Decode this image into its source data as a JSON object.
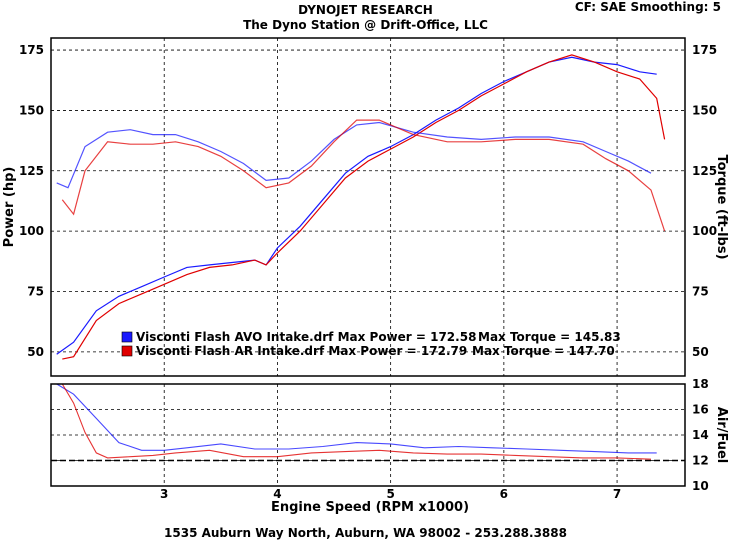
{
  "header": {
    "title": "DYNOJET RESEARCH",
    "subtitle": "The Dyno Station @ Drift-Office, LLC",
    "settings": "CF: SAE  Smoothing: 5"
  },
  "footer": {
    "address": "1535 Auburn Way North, Auburn, WA 98002 - 253.288.3888"
  },
  "colors": {
    "blue": "#1a1aff",
    "red": "#e00000",
    "frame": "#000000",
    "grid": "#000000"
  },
  "chart_data": [
    {
      "type": "line",
      "xlabel": "Engine Speed (RPM x1000)",
      "ylabel_left": "Power (hp)",
      "ylabel_right": "Torque (ft-lbs)",
      "xlim": [
        2.0,
        7.6
      ],
      "ylim": [
        40,
        180
      ],
      "x_ticks": [
        "3",
        "4",
        "5",
        "6",
        "7"
      ],
      "y_ticks": [
        "50",
        "75",
        "100",
        "125",
        "150",
        "175"
      ],
      "grid": true,
      "legend": [
        {
          "label": "Visconti Flash AVO Intake.drf Max Power = 172.58",
          "torque": "Max Torque = 145.83",
          "color": "#1a1aff"
        },
        {
          "label": "Visconti Flash AR Intake.drf Max Power = 172.79",
          "torque": "Max Torque = 147.70",
          "color": "#e00000"
        }
      ],
      "series": [
        {
          "name": "Visconti Flash AVO Intake.drf",
          "metric": "Power",
          "color": "#1a1aff",
          "x": [
            2.05,
            2.2,
            2.4,
            2.6,
            2.8,
            3.0,
            3.2,
            3.4,
            3.6,
            3.8,
            3.9,
            4.0,
            4.2,
            4.4,
            4.6,
            4.8,
            5.0,
            5.2,
            5.4,
            5.6,
            5.8,
            6.0,
            6.2,
            6.4,
            6.6,
            6.8,
            7.0,
            7.2,
            7.35
          ],
          "y": [
            49,
            54,
            67,
            73,
            77,
            81,
            85,
            86,
            87,
            88,
            86,
            93,
            102,
            113,
            124,
            131,
            135,
            140,
            146,
            151,
            157,
            162,
            166,
            170,
            172,
            170,
            169,
            166,
            165
          ]
        },
        {
          "name": "Visconti Flash AR Intake.drf",
          "metric": "Power",
          "color": "#e00000",
          "x": [
            2.1,
            2.2,
            2.4,
            2.6,
            2.8,
            3.0,
            3.2,
            3.4,
            3.6,
            3.8,
            3.9,
            4.0,
            4.2,
            4.4,
            4.6,
            4.8,
            5.0,
            5.2,
            5.4,
            5.6,
            5.8,
            6.0,
            6.2,
            6.4,
            6.6,
            6.8,
            7.0,
            7.2,
            7.35,
            7.42
          ],
          "y": [
            47,
            48,
            63,
            70,
            74,
            78,
            82,
            85,
            86,
            88,
            86,
            91,
            100,
            111,
            122,
            129,
            134,
            139,
            145,
            150,
            156,
            161,
            166,
            170,
            173,
            170,
            166,
            163,
            155,
            138
          ]
        },
        {
          "name": "Visconti Flash AVO Intake.drf",
          "metric": "Torque",
          "color": "#1a1aff",
          "x": [
            2.05,
            2.15,
            2.3,
            2.5,
            2.7,
            2.9,
            3.1,
            3.3,
            3.5,
            3.7,
            3.9,
            4.1,
            4.3,
            4.5,
            4.7,
            4.9,
            5.2,
            5.5,
            5.8,
            6.1,
            6.4,
            6.7,
            6.9,
            7.1,
            7.3
          ],
          "y": [
            120,
            118,
            135,
            141,
            142,
            140,
            140,
            137,
            133,
            128,
            121,
            122,
            129,
            138,
            144,
            145,
            141,
            139,
            138,
            139,
            139,
            137,
            133,
            129,
            124
          ]
        },
        {
          "name": "Visconti Flash AR Intake.drf",
          "metric": "Torque",
          "color": "#e00000",
          "x": [
            2.1,
            2.2,
            2.3,
            2.5,
            2.7,
            2.9,
            3.1,
            3.3,
            3.5,
            3.7,
            3.9,
            4.1,
            4.3,
            4.5,
            4.7,
            4.9,
            5.2,
            5.5,
            5.8,
            6.1,
            6.4,
            6.7,
            6.9,
            7.1,
            7.3,
            7.42
          ],
          "y": [
            113,
            107,
            125,
            137,
            136,
            136,
            137,
            135,
            131,
            125,
            118,
            120,
            127,
            137,
            146,
            146,
            140,
            137,
            137,
            138,
            138,
            136,
            130,
            125,
            117,
            100
          ]
        }
      ]
    },
    {
      "type": "line",
      "ylabel_right": "Air/Fuel",
      "xlim": [
        2.0,
        7.6
      ],
      "ylim": [
        10,
        18
      ],
      "y_ticks": [
        "10",
        "12",
        "14",
        "16",
        "18"
      ],
      "reference": 12.0,
      "series": [
        {
          "name": "Visconti Flash AVO Intake.drf",
          "metric": "Air/Fuel",
          "color": "#1a1aff",
          "x": [
            2.05,
            2.2,
            2.4,
            2.6,
            2.8,
            3.0,
            3.2,
            3.5,
            3.8,
            4.1,
            4.4,
            4.7,
            5.0,
            5.3,
            5.6,
            5.9,
            6.2,
            6.5,
            6.8,
            7.1,
            7.35
          ],
          "y": [
            18,
            17.2,
            15.3,
            13.4,
            12.8,
            12.8,
            13.0,
            13.3,
            12.9,
            12.9,
            13.1,
            13.4,
            13.3,
            13.0,
            13.1,
            13.0,
            12.9,
            12.8,
            12.7,
            12.6,
            12.6
          ]
        },
        {
          "name": "Visconti Flash AR Intake.drf",
          "metric": "Air/Fuel",
          "color": "#e00000",
          "x": [
            2.1,
            2.2,
            2.3,
            2.4,
            2.5,
            2.7,
            2.9,
            3.1,
            3.4,
            3.7,
            4.0,
            4.3,
            4.6,
            4.9,
            5.2,
            5.5,
            5.8,
            6.1,
            6.4,
            6.7,
            7.0,
            7.3
          ],
          "y": [
            18,
            16.5,
            14.2,
            12.6,
            12.2,
            12.3,
            12.4,
            12.6,
            12.8,
            12.3,
            12.3,
            12.6,
            12.7,
            12.8,
            12.6,
            12.5,
            12.5,
            12.4,
            12.3,
            12.2,
            12.2,
            12.1
          ]
        }
      ]
    }
  ]
}
